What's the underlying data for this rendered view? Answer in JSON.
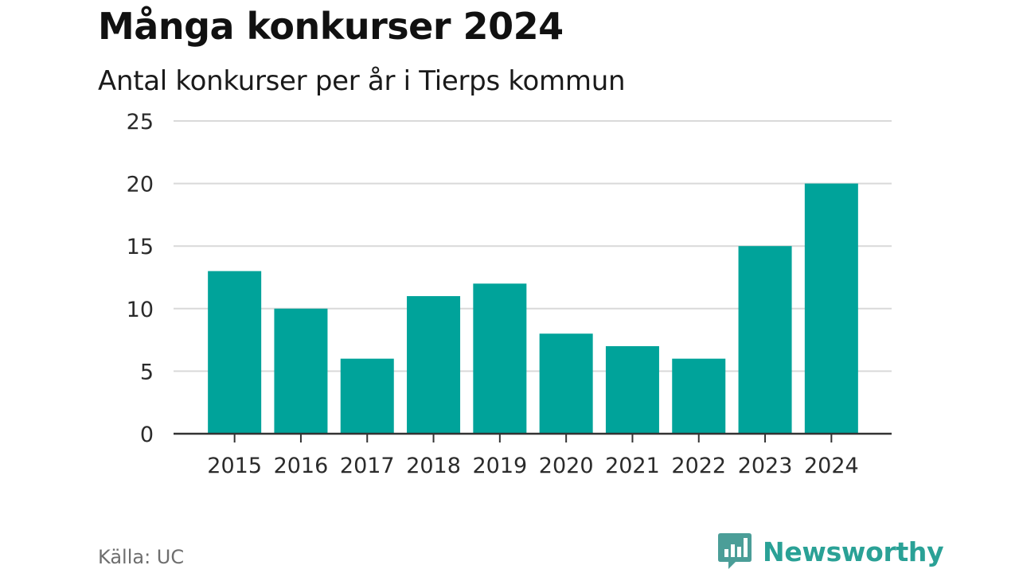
{
  "header": {
    "title": "Många konkurser 2024",
    "subtitle": "Antal konkurser per år i Tierps kommun"
  },
  "footer": {
    "source": "Källa: UC",
    "brand": "Newsworthy",
    "brand_icon": "newsworthy-logo-icon",
    "brand_color": "#2aa196"
  },
  "chart_data": {
    "type": "bar",
    "categories": [
      "2015",
      "2016",
      "2017",
      "2018",
      "2019",
      "2020",
      "2021",
      "2022",
      "2023",
      "2024"
    ],
    "values": [
      13,
      10,
      6,
      11,
      12,
      8,
      7,
      6,
      15,
      20
    ],
    "title": "Många konkurser 2024",
    "subtitle": "Antal konkurser per år i Tierps kommun",
    "xlabel": "",
    "ylabel": "",
    "ylim": [
      0,
      25
    ],
    "yticks": [
      0,
      5,
      10,
      15,
      20,
      25
    ],
    "grid": true,
    "legend": "none",
    "bar_color": "#00a39a"
  }
}
